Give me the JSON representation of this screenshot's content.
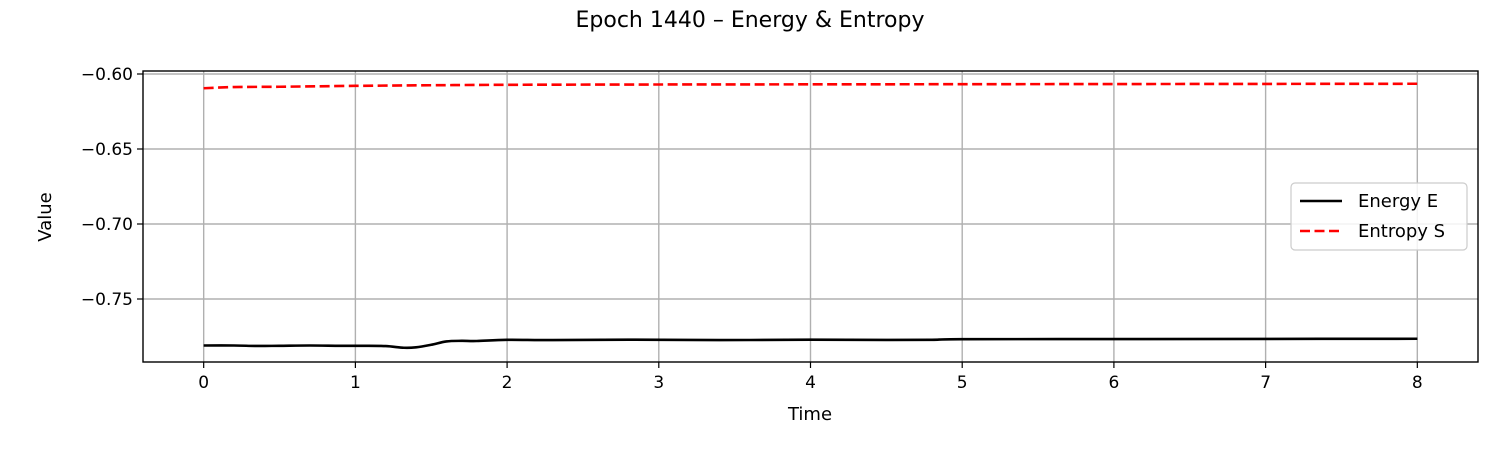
{
  "chart_data": {
    "type": "line",
    "title": "Epoch 1440 – Energy & Entropy",
    "xlabel": "Time",
    "ylabel": "Value",
    "xlim": [
      -0.4,
      8.4
    ],
    "ylim": [
      -0.792,
      -0.598
    ],
    "xticks": [
      0,
      1,
      2,
      3,
      4,
      5,
      6,
      7,
      8
    ],
    "xtick_labels": [
      "0",
      "1",
      "2",
      "3",
      "4",
      "5",
      "6",
      "7",
      "8"
    ],
    "yticks": [
      -0.6,
      -0.65,
      -0.7,
      -0.75
    ],
    "ytick_labels": [
      "−0.60",
      "−0.65",
      "−0.70",
      "−0.75"
    ],
    "grid": true,
    "legend_position": "center-right",
    "series": [
      {
        "name": "Energy E",
        "color": "#000000",
        "style": "solid",
        "x": [
          0,
          0.2,
          0.35,
          0.5,
          0.7,
          0.9,
          1.05,
          1.2,
          1.32,
          1.4,
          1.5,
          1.6,
          1.7,
          1.8,
          2.0,
          2.3,
          2.8,
          3.4,
          4.0,
          4.5,
          4.8,
          5.0,
          6.0,
          7.0,
          8.0
        ],
        "y": [
          -0.781,
          -0.781,
          -0.7813,
          -0.7812,
          -0.781,
          -0.7812,
          -0.7812,
          -0.7814,
          -0.7825,
          -0.7822,
          -0.7805,
          -0.7783,
          -0.7779,
          -0.778,
          -0.7772,
          -0.7774,
          -0.7771,
          -0.7774,
          -0.7771,
          -0.7773,
          -0.7772,
          -0.7768,
          -0.7767,
          -0.7766,
          -0.7765
        ]
      },
      {
        "name": "Entropy S",
        "color": "#ff0000",
        "style": "dashed",
        "x": [
          0,
          0.2,
          0.5,
          1.0,
          1.5,
          2.0,
          3.0,
          4.0,
          5.0,
          6.0,
          7.0,
          8.0
        ],
        "y": [
          -0.6095,
          -0.6087,
          -0.6085,
          -0.6079,
          -0.6075,
          -0.6072,
          -0.607,
          -0.6069,
          -0.6068,
          -0.6067,
          -0.6066,
          -0.6065
        ]
      }
    ]
  }
}
